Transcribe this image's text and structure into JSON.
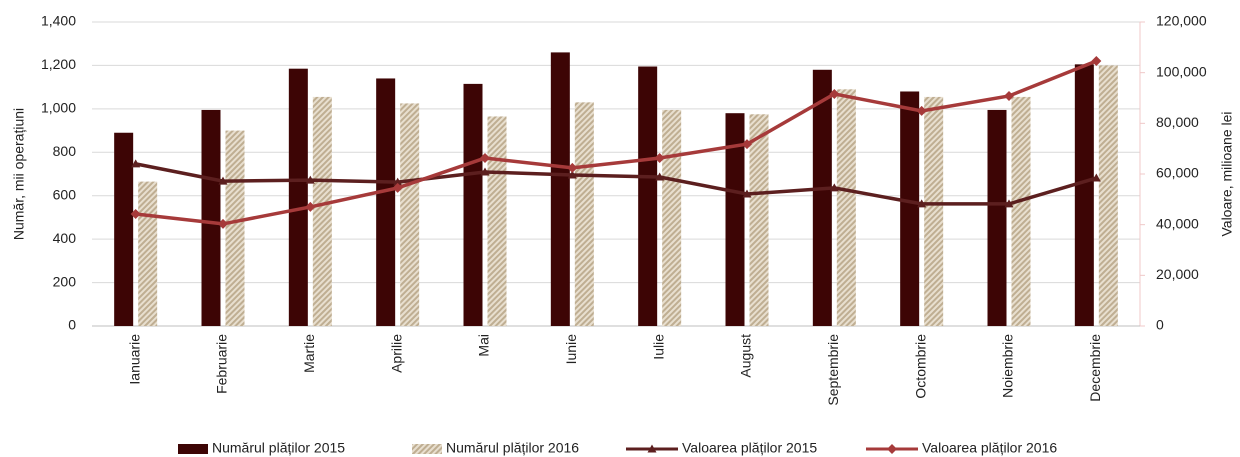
{
  "chart_data": {
    "type": "bar_line",
    "y_label": "Număr, mii operațiuni",
    "y2_label": "Valoare, milioane lei",
    "categories": [
      "Ianuarie",
      "Februarie",
      "Martie",
      "Aprilie",
      "Mai",
      "Iunie",
      "Iulie",
      "August",
      "Septembrie",
      "Octombrie",
      "Noiembrie",
      "Decembrie"
    ],
    "series": [
      {
        "name": "Numărul plăților 2015",
        "type": "bar",
        "color": "#3d0505",
        "values": [
          890,
          995,
          1185,
          1140,
          1115,
          1260,
          1195,
          980,
          1180,
          1080,
          995,
          1205
        ]
      },
      {
        "name": "Numărul plăților 2016",
        "type": "bar",
        "color": "#bfae92",
        "hatch": true,
        "values": [
          665,
          900,
          1055,
          1025,
          965,
          1030,
          995,
          975,
          1090,
          1055,
          1055,
          1200
        ]
      },
      {
        "name": "Valoarea plăților 2015",
        "type": "line",
        "axis": "y2",
        "color": "#5c1f1f",
        "marker": "triangle",
        "values": [
          64000,
          57200,
          57600,
          56800,
          60800,
          59600,
          58800,
          52100,
          54500,
          48200,
          48200,
          58400
        ]
      },
      {
        "name": "Valoarea plăților 2016",
        "type": "line",
        "axis": "y2",
        "color": "#a63a3a",
        "marker": "diamond",
        "values": [
          44200,
          40300,
          47000,
          54500,
          66300,
          62400,
          66300,
          71800,
          91600,
          84900,
          90800,
          104600
        ]
      }
    ],
    "ylim": [
      0,
      1400
    ],
    "yticks": [
      0,
      200,
      400,
      600,
      800,
      {
        "value": 1000,
        "label": "1,000"
      },
      {
        "value": 1200,
        "label": "1,200"
      },
      {
        "value": 1400,
        "label": "1,400"
      }
    ],
    "y2lim": [
      0,
      120000
    ],
    "y2ticks": [
      0,
      {
        "value": 20000,
        "label": "20,000"
      },
      {
        "value": 40000,
        "label": "40,000"
      },
      {
        "value": 60000,
        "label": "60,000"
      },
      {
        "value": 80000,
        "label": "80,000"
      },
      {
        "value": 100000,
        "label": "100,000"
      },
      {
        "value": 120000,
        "label": "120,000"
      }
    ],
    "grid": true,
    "legend": "bottom"
  }
}
